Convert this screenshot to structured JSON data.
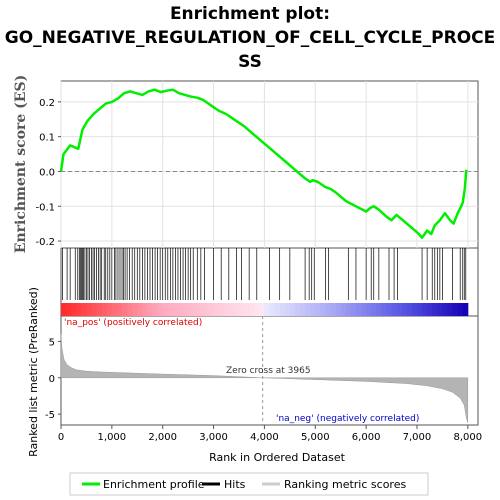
{
  "chart_data": {
    "type": "line",
    "title_lines": [
      "Enrichment plot:",
      "GO_NEGATIVE_REGULATION_OF_CELL_CYCLE_PROCE",
      "SS"
    ],
    "ylabel_top": "Enrichment score (ES)",
    "ylabel_bottom": "Ranked list metric (PreRanked)",
    "xlabel": "Rank in Ordered Dataset",
    "xlim": [
      0,
      8200
    ],
    "x_ticks": [
      "0",
      "1,000",
      "2,000",
      "3,000",
      "4,000",
      "5,000",
      "6,000",
      "7,000",
      "8,000"
    ],
    "x_tick_values": [
      0,
      1000,
      2000,
      3000,
      4000,
      5000,
      6000,
      7000,
      8000
    ],
    "es_ylim": [
      -0.22,
      0.26
    ],
    "es_ticks": [
      "0.2",
      "0.1",
      "0.0",
      "-0.1",
      "-0.2"
    ],
    "es_tick_values": [
      0.2,
      0.1,
      0.0,
      -0.1,
      -0.2
    ],
    "metric_ylim": [
      -6.5,
      8.5
    ],
    "metric_ticks": [
      "5",
      "0",
      "-5"
    ],
    "metric_tick_values": [
      5,
      0,
      -5
    ],
    "zero_cross_label": "Zero cross at 3965",
    "zero_cross": 3965,
    "pos_label": "'na_pos' (positively correlated)",
    "neg_label": "'na_neg' (negatively correlated)",
    "enrichment_profile": {
      "x": [
        0,
        50,
        180,
        340,
        420,
        520,
        640,
        760,
        880,
        1000,
        1120,
        1240,
        1360,
        1480,
        1600,
        1720,
        1840,
        1960,
        2080,
        2200,
        2320,
        2440,
        2560,
        2680,
        2800,
        2950,
        3100,
        3250,
        3400,
        3600,
        3800,
        4000,
        4200,
        4400,
        4600,
        4800,
        4900,
        4950,
        5050,
        5200,
        5300,
        5400,
        5600,
        5800,
        6000,
        6080,
        6150,
        6250,
        6400,
        6500,
        6600,
        6800,
        7000,
        7100,
        7200,
        7280,
        7350,
        7450,
        7550,
        7650,
        7720,
        7800,
        7870,
        7900,
        7940,
        7970
      ],
      "y": [
        0.0,
        0.05,
        0.075,
        0.065,
        0.12,
        0.145,
        0.165,
        0.18,
        0.195,
        0.2,
        0.21,
        0.225,
        0.23,
        0.225,
        0.22,
        0.23,
        0.235,
        0.228,
        0.232,
        0.235,
        0.225,
        0.22,
        0.215,
        0.212,
        0.205,
        0.19,
        0.175,
        0.165,
        0.15,
        0.13,
        0.105,
        0.08,
        0.055,
        0.03,
        0.005,
        -0.02,
        -0.03,
        -0.025,
        -0.03,
        -0.045,
        -0.05,
        -0.06,
        -0.085,
        -0.1,
        -0.115,
        -0.105,
        -0.1,
        -0.11,
        -0.13,
        -0.14,
        -0.125,
        -0.15,
        -0.175,
        -0.19,
        -0.17,
        -0.18,
        -0.155,
        -0.14,
        -0.12,
        -0.14,
        -0.15,
        -0.12,
        -0.1,
        -0.09,
        -0.05,
        0.005
      ]
    },
    "hits": [
      30,
      120,
      180,
      280,
      330,
      360,
      380,
      400,
      420,
      440,
      470,
      500,
      530,
      560,
      600,
      630,
      660,
      700,
      740,
      770,
      800,
      850,
      880,
      920,
      960,
      1000,
      1050,
      1080,
      1120,
      1160,
      1200,
      1230,
      1260,
      1300,
      1350,
      1400,
      1450,
      1500,
      1550,
      1600,
      1650,
      1700,
      1750,
      1800,
      1850,
      1900,
      1950,
      2000,
      2050,
      2100,
      2150,
      2200,
      2250,
      2300,
      2350,
      2400,
      2450,
      2500,
      2550,
      2600,
      2680,
      2750,
      2820,
      3000,
      3150,
      3300,
      3450,
      3550,
      3700,
      3850,
      4100,
      4300,
      4500,
      4800,
      4880,
      4930,
      4980,
      5200,
      5260,
      5650,
      5800,
      6000,
      6100,
      6150,
      6250,
      6450,
      6550,
      6620,
      7100,
      7200,
      7300,
      7350,
      7400,
      7450,
      7500,
      7700,
      7850,
      7900,
      7930,
      7960
    ],
    "metric": {
      "x": [
        0,
        20,
        60,
        120,
        200,
        300,
        500,
        800,
        1200,
        2000,
        3000,
        3965,
        5000,
        6000,
        6800,
        7200,
        7500,
        7700,
        7850,
        7930,
        7970,
        8000
      ],
      "y": [
        6.0,
        4.0,
        2.5,
        1.8,
        1.4,
        1.1,
        0.9,
        0.8,
        0.7,
        0.5,
        0.3,
        0.0,
        -0.25,
        -0.5,
        -0.8,
        -1.1,
        -1.5,
        -2.0,
        -2.8,
        -3.8,
        -5.5,
        -6.2
      ]
    },
    "legend": [
      {
        "label": "Enrichment profile",
        "color": "#00ee00"
      },
      {
        "label": "Hits",
        "color": "#000000"
      },
      {
        "label": "Ranking metric scores",
        "color": "#c8c8c8"
      }
    ]
  },
  "colors": {
    "profile": "#00ee00",
    "hit": "#000000",
    "metric_fill": "#b4b4b4",
    "pos_text": "#dd0000",
    "neg_text": "#0000cc",
    "grid": "#e2e2e2"
  }
}
